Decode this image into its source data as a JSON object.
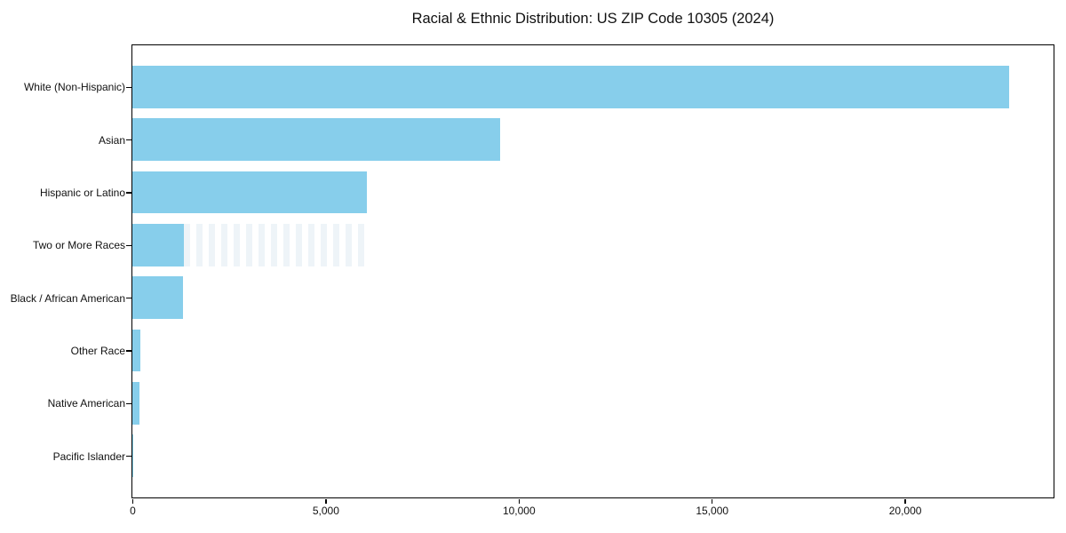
{
  "figure": {
    "background": "#ffffff",
    "text_color": "#111111",
    "spine_color": "#000000"
  },
  "chart_data": {
    "type": "bar",
    "orientation": "horizontal",
    "title": "Racial & Ethnic Distribution: US ZIP Code 10305 (2024)",
    "categories": [
      "White (Non-Hispanic)",
      "Asian",
      "Hispanic or Latino",
      "Two or More Races",
      "Black / African American",
      "Other Race",
      "Native American",
      "Pacific Islander"
    ],
    "values": [
      22700,
      9520,
      6070,
      1330,
      1310,
      210,
      185,
      15
    ],
    "bar_color": "#87CEEB",
    "xlabel": "",
    "ylabel": "",
    "xlim": [
      0,
      23850
    ],
    "xticks": [
      0,
      5000,
      10000,
      15000,
      20000
    ],
    "xtick_labels": [
      "0",
      "5,000",
      "10,000",
      "15,000",
      "20,000"
    ],
    "grid": false,
    "legend": null
  }
}
